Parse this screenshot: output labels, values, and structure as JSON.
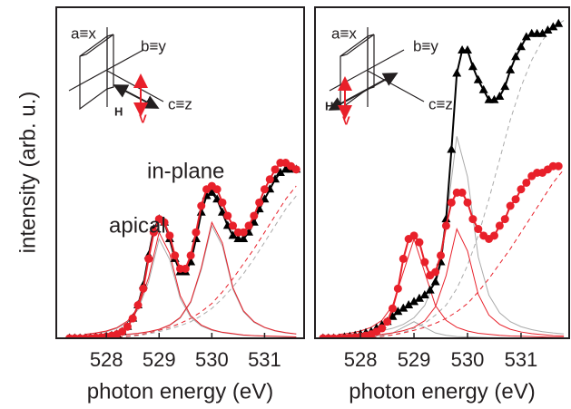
{
  "chart_data": [
    {
      "type": "line",
      "ylabel": "intensity (arb. u.)",
      "xlabel": "photon energy (eV)",
      "xlim": [
        527.05,
        531.75
      ],
      "xticks": [
        528,
        529,
        530,
        531
      ],
      "ylim": [
        0,
        100
      ],
      "annotations": [
        "apical",
        "in-plane"
      ],
      "inset_labels": [
        "a≡x",
        "b≡y",
        "c≡z",
        "H",
        "V"
      ],
      "x": [
        527.3,
        527.4,
        527.5,
        527.6,
        527.7,
        527.8,
        527.9,
        528.0,
        528.1,
        528.2,
        528.3,
        528.4,
        528.5,
        528.6,
        528.7,
        528.8,
        528.9,
        529.0,
        529.1,
        529.2,
        529.3,
        529.4,
        529.5,
        529.6,
        529.7,
        529.8,
        529.9,
        530.0,
        530.1,
        530.2,
        530.3,
        530.4,
        530.5,
        530.6,
        530.7,
        530.8,
        530.9,
        531.0,
        531.1,
        531.2,
        531.3,
        531.4,
        531.5,
        531.6
      ],
      "series": [
        {
          "color": "#aaaaaa",
          "dash": true,
          "x": [
            527.6,
            527.8,
            528.0,
            528.2,
            528.4,
            528.6,
            528.8,
            529.0,
            529.2,
            529.4,
            529.6,
            529.8,
            530.0,
            530.2,
            530.4,
            530.6,
            530.8,
            531.0,
            531.2,
            531.4,
            531.6
          ],
          "values": [
            0,
            0,
            0,
            0.2,
            0.5,
            0.8,
            1.3,
            2,
            2.8,
            3.8,
            5,
            6.8,
            9,
            12,
            15.5,
            19.5,
            24,
            29,
            34,
            39,
            43
          ]
        },
        {
          "color": "#e8202a",
          "dash": true,
          "x": [
            527.6,
            527.8,
            528.0,
            528.2,
            528.4,
            528.6,
            528.8,
            529.0,
            529.2,
            529.4,
            529.6,
            529.8,
            530.0,
            530.2,
            530.4,
            530.6,
            530.8,
            531.0,
            531.2,
            531.4,
            531.6
          ],
          "values": [
            0,
            0,
            0,
            0.3,
            0.6,
            1,
            1.6,
            2.4,
            3.3,
            4.5,
            6,
            8,
            10.5,
            14,
            18,
            22.5,
            27,
            32,
            37,
            42,
            46
          ]
        },
        {
          "color": "#aaaaaa",
          "x": [
            527.6,
            527.8,
            528.0,
            528.2,
            528.4,
            528.6,
            528.8,
            529.0,
            529.2,
            529.4,
            529.6,
            529.8,
            530.0,
            530.2,
            530.4,
            530.6,
            530.8,
            531.0,
            531.2,
            531.4,
            531.6
          ],
          "values": [
            1.1,
            1.5,
            2.0,
            3.0,
            4.8,
            8.6,
            17,
            30,
            23.8,
            12,
            6.3,
            3.7,
            2.4,
            1.7,
            1.3,
            0.9,
            0.8,
            0.6,
            0.5,
            0.4,
            0.4
          ]
        },
        {
          "color": "#aaaaaa",
          "x": [
            527.6,
            527.8,
            528.0,
            528.2,
            528.4,
            528.6,
            528.8,
            529.0,
            529.2,
            529.4,
            529.6,
            529.8,
            530.0,
            530.2,
            530.4,
            530.6,
            530.8,
            531.0,
            531.2,
            531.4,
            531.6
          ],
          "values": [
            0.5,
            0.6,
            0.7,
            0.9,
            1.1,
            1.4,
            1.9,
            2.6,
            3.9,
            6.1,
            10.8,
            20.7,
            34,
            27.9,
            14.8,
            8,
            4.8,
            3.2,
            2.2,
            1.6,
            1.3
          ]
        },
        {
          "color": "#e8202a",
          "x": [
            527.6,
            527.8,
            528.0,
            528.2,
            528.4,
            528.6,
            528.8,
            529.0,
            529.2,
            529.4,
            529.6,
            529.8,
            530.0,
            530.2,
            530.4,
            530.6,
            530.8,
            531.0,
            531.2,
            531.4,
            531.6
          ],
          "values": [
            1.2,
            1.6,
            2.2,
            3.2,
            5.2,
            9.2,
            18.3,
            32,
            25.6,
            12.9,
            6.8,
            4.0,
            2.6,
            1.8,
            1.4,
            1.0,
            0.8,
            0.7,
            0.6,
            0.5,
            0.4
          ]
        },
        {
          "color": "#e8202a",
          "x": [
            527.6,
            527.8,
            528.0,
            528.2,
            528.4,
            528.6,
            528.8,
            529.0,
            529.2,
            529.4,
            529.6,
            529.8,
            530.0,
            530.2,
            530.4,
            530.6,
            530.8,
            531.0,
            531.2,
            531.4,
            531.6
          ],
          "values": [
            0.5,
            0.6,
            0.75,
            0.9,
            1.2,
            1.5,
            2.0,
            2.7,
            4.0,
            6.3,
            11.1,
            21.3,
            35,
            28.8,
            15.3,
            8.3,
            5.0,
            3.3,
            2.3,
            1.7,
            1.3
          ]
        },
        {
          "color": "#000000",
          "marker": "triangle",
          "values": [
            0,
            0,
            0,
            0,
            0,
            0.2,
            0.3,
            0.5,
            0.8,
            1.2,
            2,
            3.5,
            6,
            10,
            16,
            25,
            33,
            36,
            35,
            30,
            24,
            20,
            20,
            23,
            30,
            38,
            43,
            44,
            42,
            38,
            34,
            31,
            30,
            30,
            32,
            35,
            39,
            42,
            45,
            48,
            50,
            51,
            51,
            51
          ]
        },
        {
          "color": "#e8202a",
          "marker": "circle",
          "values": [
            0,
            0,
            0,
            0,
            0,
            0.2,
            0.3,
            0.5,
            0.8,
            1.2,
            2,
            3.5,
            6,
            10,
            15,
            24,
            32,
            36,
            35,
            31,
            25,
            21,
            21,
            25,
            32,
            40,
            45,
            46,
            45,
            41,
            37,
            34,
            32,
            32,
            34,
            37,
            41,
            45,
            48,
            51,
            53,
            53,
            52,
            51
          ]
        }
      ]
    },
    {
      "type": "line",
      "xlabel": "photon energy (eV)",
      "xlim": [
        527.15,
        531.9
      ],
      "xticks": [
        528,
        529,
        530,
        531
      ],
      "ylim": [
        0,
        100
      ],
      "inset_labels": [
        "a≡x",
        "b≡y",
        "c≡z",
        "H",
        "V"
      ],
      "x": [
        527.3,
        527.4,
        527.5,
        527.6,
        527.7,
        527.8,
        527.9,
        528.0,
        528.1,
        528.2,
        528.3,
        528.4,
        528.5,
        528.6,
        528.7,
        528.8,
        528.9,
        529.0,
        529.1,
        529.2,
        529.3,
        529.4,
        529.5,
        529.6,
        529.7,
        529.8,
        529.9,
        530.0,
        530.1,
        530.2,
        530.3,
        530.4,
        530.5,
        530.6,
        530.7,
        530.8,
        530.9,
        531.0,
        531.1,
        531.2,
        531.3,
        531.4,
        531.5,
        531.6,
        531.7
      ],
      "series": [
        {
          "color": "#aaaaaa",
          "dash": true,
          "x": [
            527.6,
            527.8,
            528.0,
            528.2,
            528.4,
            528.6,
            528.8,
            529.0,
            529.2,
            529.4,
            529.6,
            529.8,
            530.0,
            530.2,
            530.4,
            530.6,
            530.8,
            531.0,
            531.2,
            531.4,
            531.6,
            531.8
          ],
          "values": [
            0,
            0,
            0,
            0.3,
            0.6,
            1,
            1.8,
            3,
            4.5,
            7,
            10,
            15,
            22,
            31,
            42,
            54,
            66,
            76,
            84,
            90,
            94,
            96
          ]
        },
        {
          "color": "#e8202a",
          "dash": true,
          "x": [
            527.6,
            527.8,
            528.0,
            528.2,
            528.4,
            528.6,
            528.8,
            529.0,
            529.2,
            529.4,
            529.6,
            529.8,
            530.0,
            530.2,
            530.4,
            530.6,
            530.8,
            531.0,
            531.2,
            531.4,
            531.6,
            531.8
          ],
          "values": [
            0,
            0,
            0,
            0.3,
            0.6,
            1,
            1.6,
            2.4,
            3.3,
            4.5,
            6,
            8,
            10.5,
            14,
            18,
            22.5,
            27,
            32,
            37,
            42,
            47,
            51
          ]
        },
        {
          "color": "#aaaaaa",
          "x": [
            527.6,
            527.8,
            528.0,
            528.2,
            528.4,
            528.6,
            528.8,
            529.0,
            529.2,
            529.4,
            529.6,
            529.8,
            530.0,
            530.2,
            530.4,
            530.6,
            530.8,
            531.0,
            531.2,
            531.4,
            531.6,
            531.8
          ],
          "values": [
            0.2,
            0.3,
            0.4,
            0.5,
            0.9,
            1.6,
            3.3,
            5,
            3.3,
            1.6,
            0.9,
            0.5,
            0.4,
            0.3,
            0.2,
            0.2,
            0.1,
            0.1,
            0.1,
            0.1,
            0.1,
            0
          ]
        },
        {
          "color": "#aaaaaa",
          "x": [
            527.6,
            527.8,
            528.0,
            528.2,
            528.4,
            528.6,
            528.8,
            529.0,
            529.2,
            529.4,
            529.6,
            529.8,
            530.0,
            530.2,
            530.4,
            530.6,
            530.8,
            531.0,
            531.2,
            531.4,
            531.6,
            531.8
          ],
          "values": [
            0.9,
            1.2,
            1.4,
            1.8,
            2.3,
            3.0,
            4.2,
            6.2,
            9.9,
            17.6,
            35,
            61,
            48.8,
            24.6,
            13,
            7.7,
            5,
            3.5,
            2.6,
            2,
            1.6,
            1.3
          ]
        },
        {
          "color": "#e8202a",
          "x": [
            527.6,
            527.8,
            528.0,
            528.2,
            528.4,
            528.6,
            528.8,
            529.0,
            529.2,
            529.4,
            529.6,
            529.8,
            530.0,
            530.2,
            530.4,
            530.6,
            530.8,
            531.0,
            531.2,
            531.4,
            531.6,
            531.8
          ],
          "values": [
            1.2,
            1.5,
            2.2,
            3.3,
            5.4,
            9.9,
            19.9,
            30,
            19.9,
            9.9,
            5.4,
            3.3,
            2.2,
            1.5,
            1.2,
            0.9,
            0.7,
            0.6,
            0.5,
            0.4,
            0.3,
            0.3
          ]
        },
        {
          "color": "#e8202a",
          "x": [
            527.6,
            527.8,
            528.0,
            528.2,
            528.4,
            528.6,
            528.8,
            529.0,
            529.2,
            529.4,
            529.6,
            529.8,
            530.0,
            530.2,
            530.4,
            530.6,
            530.8,
            531.0,
            531.2,
            531.4,
            531.6,
            531.8
          ],
          "values": [
            0.5,
            0.6,
            0.8,
            1.0,
            1.2,
            1.6,
            2.3,
            3.3,
            5.3,
            9.5,
            18.9,
            33,
            26.4,
            13.3,
            7.0,
            4.2,
            2.7,
            1.9,
            1.4,
            1.1,
            0.8,
            0.7
          ]
        },
        {
          "color": "#000000",
          "marker": "triangle",
          "values": [
            0,
            0,
            0,
            0,
            0.3,
            0.5,
            0.8,
            1.2,
            1.6,
            2,
            3,
            4,
            5,
            6.5,
            8,
            9,
            10,
            11,
            12,
            13,
            14.5,
            17,
            23,
            36,
            57,
            80,
            87,
            87,
            82,
            78,
            75,
            72,
            72,
            73,
            76,
            81,
            85,
            88,
            91,
            92,
            92,
            92,
            93,
            94,
            95
          ]
        },
        {
          "color": "#e8202a",
          "marker": "circle",
          "values": [
            0,
            0,
            0,
            0,
            0,
            0.2,
            0.3,
            0.5,
            0.8,
            1.2,
            2,
            3,
            5,
            9,
            15,
            24,
            30,
            31,
            29,
            23,
            19,
            20,
            25,
            34,
            41,
            44,
            44,
            41,
            36,
            33,
            31,
            30,
            31,
            34,
            36,
            40,
            42,
            45,
            47,
            49,
            50,
            50,
            51,
            52,
            52
          ]
        }
      ]
    }
  ]
}
